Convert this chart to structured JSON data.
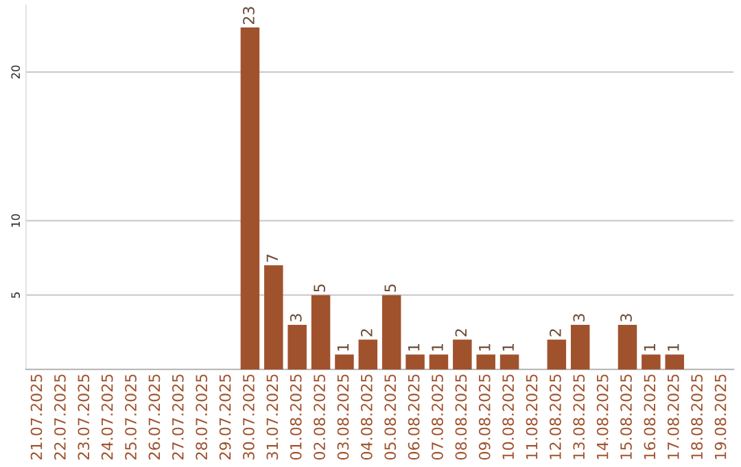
{
  "chart_data": {
    "type": "bar",
    "categories": [
      "21.07.2025",
      "22.07.2025",
      "23.07.2025",
      "24.07.2025",
      "25.07.2025",
      "26.07.2025",
      "27.07.2025",
      "28.07.2025",
      "29.07.2025",
      "30.07.2025",
      "31.07.2025",
      "01.08.2025",
      "02.08.2025",
      "03.08.2025",
      "04.08.2025",
      "05.08.2025",
      "06.08.2025",
      "07.08.2025",
      "08.08.2025",
      "09.08.2025",
      "10.08.2025",
      "11.08.2025",
      "12.08.2025",
      "13.08.2025",
      "14.08.2025",
      "15.08.2025",
      "16.08.2025",
      "17.08.2025",
      "18.08.2025",
      "19.08.2025"
    ],
    "values": [
      0,
      0,
      0,
      0,
      0,
      0,
      0,
      0,
      0,
      23,
      7,
      3,
      5,
      1,
      2,
      5,
      1,
      1,
      2,
      1,
      1,
      0,
      2,
      3,
      0,
      3,
      1,
      1,
      0,
      0
    ],
    "value_labels": [
      null,
      null,
      null,
      null,
      null,
      null,
      null,
      null,
      null,
      "23",
      "7",
      "3",
      "5",
      "1",
      "2",
      "5",
      "1",
      "1",
      "2",
      "1",
      "1",
      null,
      "2",
      "3",
      null,
      "3",
      "1",
      "1",
      null,
      null
    ],
    "color": "#a0522d",
    "ylim": [
      0,
      24.5
    ],
    "yticks": [
      5,
      10,
      20
    ],
    "grid": "y",
    "legend": false
  }
}
